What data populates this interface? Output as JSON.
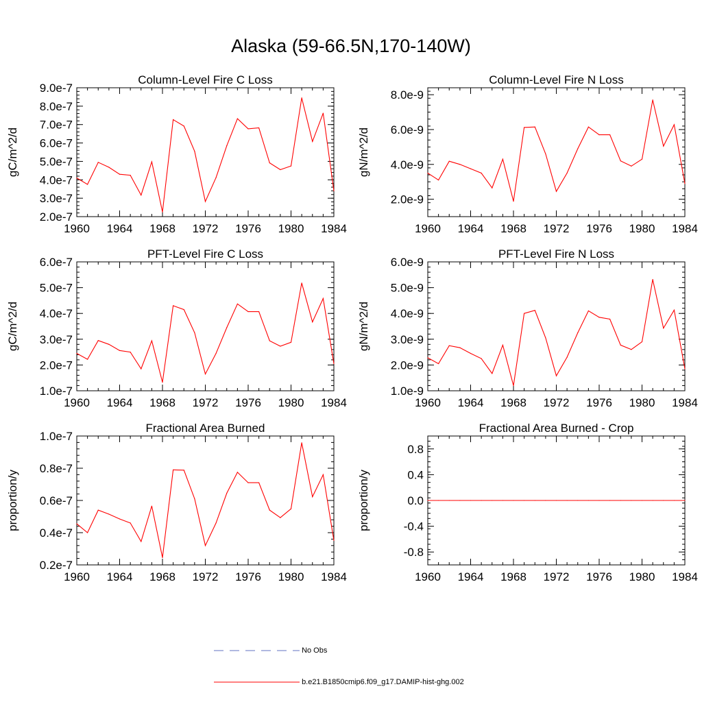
{
  "title": "Alaska (59-66.5N,170-140W)",
  "legend": [
    {
      "label": "No Obs",
      "color": "#6070c0",
      "style": "dashed"
    },
    {
      "label": "b.e21.B1850cmip6.f09_g17.DAMIP-hist-ghg.002",
      "color": "#ff0000",
      "style": "solid"
    }
  ],
  "chart_data": [
    {
      "type": "line",
      "title": "Column-Level Fire C Loss",
      "ylabel": "gC/m^2/d",
      "xlim": [
        1960,
        1984
      ],
      "ylim": [
        2e-07,
        9e-07
      ],
      "xticks": [
        1960,
        1964,
        1968,
        1972,
        1976,
        1980,
        1984
      ],
      "yticks": [
        2e-07,
        3e-07,
        4e-07,
        5e-07,
        6e-07,
        7e-07,
        8e-07,
        9e-07
      ],
      "yticklabels": [
        "2.0e-7",
        "3.0e-7",
        "4.0e-7",
        "5.0e-7",
        "6.0e-7",
        "7.0e-7",
        "8.0e-7",
        "9.0e-7"
      ],
      "x": [
        1960,
        1961,
        1962,
        1963,
        1964,
        1965,
        1966,
        1967,
        1968,
        1969,
        1970,
        1971,
        1972,
        1973,
        1974,
        1975,
        1976,
        1977,
        1978,
        1979,
        1980,
        1981,
        1982,
        1983,
        1984
      ],
      "series": [
        {
          "color": "#ff0000",
          "values": [
            4.1e-07,
            3.75e-07,
            4.95e-07,
            4.68e-07,
            4.3e-07,
            4.25e-07,
            3.17e-07,
            4.98e-07,
            2.25e-07,
            7.27e-07,
            6.92e-07,
            5.55e-07,
            2.82e-07,
            4.12e-07,
            5.85e-07,
            7.32e-07,
            6.77e-07,
            6.82e-07,
            4.92e-07,
            4.55e-07,
            4.75e-07,
            8.45e-07,
            6.08e-07,
            7.62e-07,
            3.4e-07
          ]
        }
      ]
    },
    {
      "type": "line",
      "title": "Column-Level Fire N Loss",
      "ylabel": "gN/m^2/d",
      "xlim": [
        1960,
        1984
      ],
      "ylim": [
        1e-09,
        8.4e-09
      ],
      "xticks": [
        1960,
        1964,
        1968,
        1972,
        1976,
        1980,
        1984
      ],
      "yticks": [
        2e-09,
        4e-09,
        6e-09,
        8e-09
      ],
      "yticklabels": [
        "2.0e-9",
        "4.0e-9",
        "6.0e-9",
        "8.0e-9"
      ],
      "x": [
        1960,
        1961,
        1962,
        1963,
        1964,
        1965,
        1966,
        1967,
        1968,
        1969,
        1970,
        1971,
        1972,
        1973,
        1974,
        1975,
        1976,
        1977,
        1978,
        1979,
        1980,
        1981,
        1982,
        1983,
        1984
      ],
      "series": [
        {
          "color": "#ff0000",
          "values": [
            3.5e-09,
            3.1e-09,
            4.18e-09,
            4e-09,
            3.75e-09,
            3.5e-09,
            2.65e-09,
            4.3e-09,
            1.88e-09,
            6.12e-09,
            6.15e-09,
            4.6e-09,
            2.45e-09,
            3.5e-09,
            4.9e-09,
            6.15e-09,
            5.7e-09,
            5.7e-09,
            4.2e-09,
            3.9e-09,
            4.3e-09,
            7.7e-09,
            5.05e-09,
            6.28e-09,
            2.9e-09
          ]
        }
      ]
    },
    {
      "type": "line",
      "title": "PFT-Level Fire C Loss",
      "ylabel": "gC/m^2/d",
      "xlim": [
        1960,
        1984
      ],
      "ylim": [
        1e-07,
        6e-07
      ],
      "xticks": [
        1960,
        1964,
        1968,
        1972,
        1976,
        1980,
        1984
      ],
      "yticks": [
        1e-07,
        2e-07,
        3e-07,
        4e-07,
        5e-07,
        6e-07
      ],
      "yticklabels": [
        "1.0e-7",
        "2.0e-7",
        "3.0e-7",
        "4.0e-7",
        "5.0e-7",
        "6.0e-7"
      ],
      "x": [
        1960,
        1961,
        1962,
        1963,
        1964,
        1965,
        1966,
        1967,
        1968,
        1969,
        1970,
        1971,
        1972,
        1973,
        1974,
        1975,
        1976,
        1977,
        1978,
        1979,
        1980,
        1981,
        1982,
        1983,
        1984
      ],
      "series": [
        {
          "color": "#ff0000",
          "values": [
            2.45e-07,
            2.22e-07,
            2.95e-07,
            2.8e-07,
            2.56e-07,
            2.5e-07,
            1.85e-07,
            2.94e-07,
            1.33e-07,
            4.3e-07,
            4.15e-07,
            3.25e-07,
            1.65e-07,
            2.45e-07,
            3.45e-07,
            4.37e-07,
            4.07e-07,
            4.07e-07,
            2.94e-07,
            2.73e-07,
            2.88e-07,
            5.18e-07,
            3.67e-07,
            4.58e-07,
            2.05e-07
          ]
        }
      ]
    },
    {
      "type": "line",
      "title": "PFT-Level Fire N Loss",
      "ylabel": "gN/m^2/d",
      "xlim": [
        1960,
        1984
      ],
      "ylim": [
        1e-09,
        6e-09
      ],
      "xticks": [
        1960,
        1964,
        1968,
        1972,
        1976,
        1980,
        1984
      ],
      "yticks": [
        1e-09,
        2e-09,
        3e-09,
        4e-09,
        5e-09,
        6e-09
      ],
      "yticklabels": [
        "1.0e-9",
        "2.0e-9",
        "3.0e-9",
        "4.0e-9",
        "5.0e-9",
        "6.0e-9"
      ],
      "x": [
        1960,
        1961,
        1962,
        1963,
        1964,
        1965,
        1966,
        1967,
        1968,
        1969,
        1970,
        1971,
        1972,
        1973,
        1974,
        1975,
        1976,
        1977,
        1978,
        1979,
        1980,
        1981,
        1982,
        1983,
        1984
      ],
      "series": [
        {
          "color": "#ff0000",
          "values": [
            2.28e-09,
            2.05e-09,
            2.75e-09,
            2.67e-09,
            2.45e-09,
            2.25e-09,
            1.67e-09,
            2.77e-09,
            1.2e-09,
            4e-09,
            4.12e-09,
            3.05e-09,
            1.58e-09,
            2.3e-09,
            3.25e-09,
            4.1e-09,
            3.85e-09,
            3.78e-09,
            2.77e-09,
            2.6e-09,
            2.9e-09,
            5.32e-09,
            3.43e-09,
            4.13e-09,
            1.85e-09
          ]
        }
      ]
    },
    {
      "type": "line",
      "title": "Fractional Area Burned",
      "ylabel": "proportion/y",
      "xlim": [
        1960,
        1984
      ],
      "ylim": [
        2e-08,
        1e-07
      ],
      "xticks": [
        1960,
        1964,
        1968,
        1972,
        1976,
        1980,
        1984
      ],
      "yticks": [
        2e-08,
        4e-08,
        6e-08,
        8e-08,
        1e-07
      ],
      "yticklabels": [
        "0.2e-7",
        "0.4e-7",
        "0.6e-7",
        "0.8e-7",
        "1.0e-7"
      ],
      "x": [
        1960,
        1961,
        1962,
        1963,
        1964,
        1965,
        1966,
        1967,
        1968,
        1969,
        1970,
        1971,
        1972,
        1973,
        1974,
        1975,
        1976,
        1977,
        1978,
        1979,
        1980,
        1981,
        1982,
        1983,
        1984
      ],
      "series": [
        {
          "color": "#ff0000",
          "values": [
            4.55e-08,
            4e-08,
            5.4e-08,
            5.15e-08,
            4.85e-08,
            4.6e-08,
            3.45e-08,
            5.65e-08,
            2.45e-08,
            7.9e-08,
            7.88e-08,
            6.1e-08,
            3.2e-08,
            4.6e-08,
            6.45e-08,
            7.75e-08,
            7.1e-08,
            7.1e-08,
            5.4e-08,
            4.93e-08,
            5.48e-08,
            9.58e-08,
            6.23e-08,
            7.6e-08,
            3.52e-08
          ]
        }
      ]
    },
    {
      "type": "line",
      "title": "Fractional Area Burned - Crop",
      "ylabel": "proportion/y",
      "xlim": [
        1960,
        1984
      ],
      "ylim": [
        -1.0,
        1.0
      ],
      "xticks": [
        1960,
        1964,
        1968,
        1972,
        1976,
        1980,
        1984
      ],
      "yticks": [
        -0.8,
        -0.4,
        0.0,
        0.4,
        0.8
      ],
      "yticklabels": [
        "-0.8",
        "-0.4",
        "0.0",
        "0.4",
        "0.8"
      ],
      "x": [
        1960,
        1961,
        1962,
        1963,
        1964,
        1965,
        1966,
        1967,
        1968,
        1969,
        1970,
        1971,
        1972,
        1973,
        1974,
        1975,
        1976,
        1977,
        1978,
        1979,
        1980,
        1981,
        1982,
        1983,
        1984
      ],
      "series": [
        {
          "color": "#ff0000",
          "values": [
            0,
            0,
            0,
            0,
            0,
            0,
            0,
            0,
            0,
            0,
            0,
            0,
            0,
            0,
            0,
            0,
            0,
            0,
            0,
            0,
            0,
            0,
            0,
            0,
            0
          ]
        }
      ]
    }
  ]
}
